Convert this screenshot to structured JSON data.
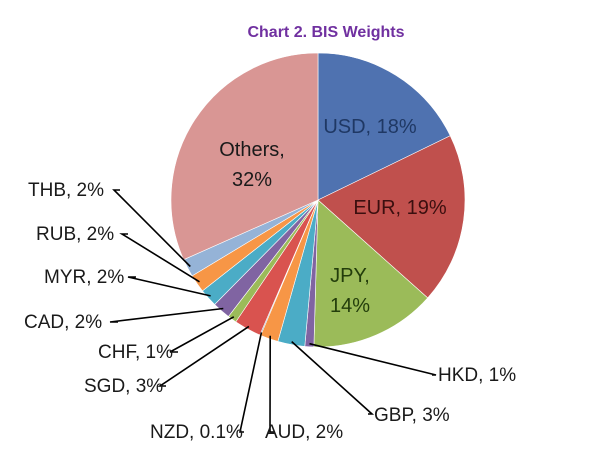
{
  "chart_data": {
    "type": "pie",
    "title": "Chart 2. BIS Weights",
    "slices": [
      {
        "name": "USD",
        "label": "USD, 18%",
        "value": 18,
        "color": "#4f72b0",
        "text_color": "#1f3864"
      },
      {
        "name": "EUR",
        "label": "EUR, 19%",
        "value": 19,
        "color": "#c0504d",
        "text_color": "#3b0f0f"
      },
      {
        "name": "JPY",
        "label": "JPY,\n14%",
        "value": 14,
        "color": "#9bbb59",
        "text_color": "#233d0b"
      },
      {
        "name": "HKD",
        "label": "HKD, 1%",
        "value": 1,
        "color": "#8064a2",
        "text_color": "#1a1a1a"
      },
      {
        "name": "GBP",
        "label": "GBP, 3%",
        "value": 3,
        "color": "#4bacc6",
        "text_color": "#1a1a1a"
      },
      {
        "name": "AUD",
        "label": "AUD, 2%",
        "value": 2,
        "color": "#f79646",
        "text_color": "#1a1a1a"
      },
      {
        "name": "NZD",
        "label": "NZD, 0.1%",
        "value": 0.1,
        "color": "#2c4d75",
        "text_color": "#1a1a1a"
      },
      {
        "name": "SGD",
        "label": "SGD, 3%",
        "value": 3,
        "color": "#d9534f",
        "text_color": "#1a1a1a"
      },
      {
        "name": "CHF",
        "label": "CHF, 1%",
        "value": 1,
        "color": "#9bbb59",
        "text_color": "#1a1a1a"
      },
      {
        "name": "CAD",
        "label": "CAD, 2%",
        "value": 2,
        "color": "#8064a2",
        "text_color": "#1a1a1a"
      },
      {
        "name": "MYR",
        "label": "MYR, 2%",
        "value": 2,
        "color": "#4bacc6",
        "text_color": "#1a1a1a"
      },
      {
        "name": "RUB",
        "label": "RUB, 2%",
        "value": 2,
        "color": "#f79646",
        "text_color": "#1a1a1a"
      },
      {
        "name": "THB",
        "label": "THB, 2%",
        "value": 2,
        "color": "#95b3d7",
        "text_color": "#1a1a1a"
      },
      {
        "name": "Others",
        "label": "Others,\n32%",
        "value": 32,
        "color": "#d99694",
        "text_color": "#1a1a1a"
      }
    ]
  }
}
